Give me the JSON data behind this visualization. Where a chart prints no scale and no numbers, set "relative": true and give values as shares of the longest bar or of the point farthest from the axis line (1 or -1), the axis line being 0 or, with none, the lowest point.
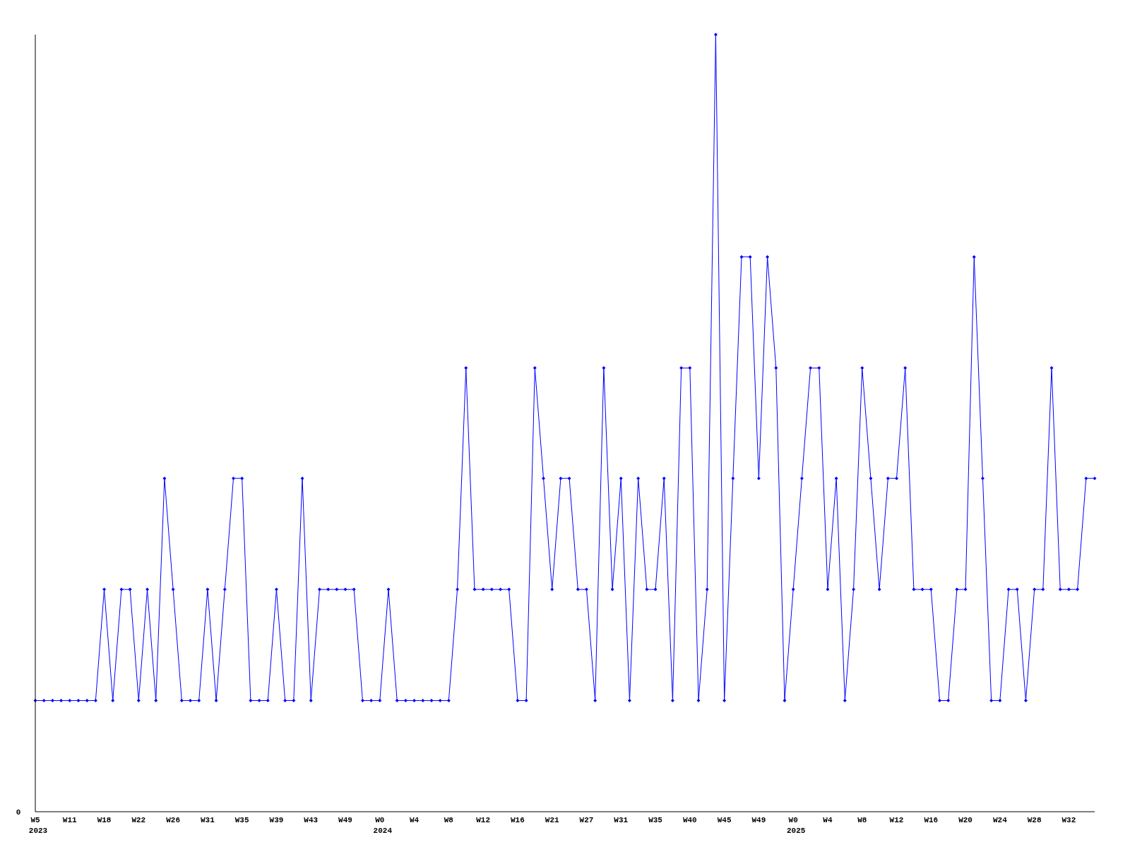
{
  "chart_data": {
    "type": "line",
    "relative": true,
    "marker": "diamond",
    "line_style": "solid",
    "annotations": [
      "0"
    ],
    "categories": [
      "W5\n2023",
      null,
      null,
      null,
      "W11",
      null,
      null,
      null,
      "W18",
      null,
      null,
      null,
      "W22",
      null,
      null,
      null,
      "W26",
      null,
      null,
      null,
      "W31",
      null,
      null,
      null,
      "W35",
      null,
      null,
      null,
      "W39",
      null,
      null,
      null,
      "W43",
      null,
      null,
      null,
      "W49",
      null,
      null,
      null,
      "W0\n2024",
      null,
      null,
      null,
      "W4",
      null,
      null,
      null,
      "W8",
      null,
      null,
      null,
      "W12",
      null,
      null,
      null,
      "W16",
      null,
      null,
      null,
      "W21",
      null,
      null,
      null,
      "W27",
      null,
      null,
      null,
      "W31",
      null,
      null,
      null,
      "W35",
      null,
      null,
      null,
      "W40",
      null,
      null,
      null,
      "W45",
      null,
      null,
      null,
      "W49",
      null,
      null,
      null,
      "W0\n2025",
      null,
      null,
      null,
      "W4",
      null,
      null,
      null,
      "W8",
      null,
      null,
      null,
      "W12",
      null,
      null,
      null,
      "W16",
      null,
      null,
      null,
      "W20",
      null,
      null,
      null,
      "W24",
      null,
      null,
      null,
      "W28",
      null,
      null,
      null,
      "W32",
      null,
      null,
      null
    ],
    "series": [
      {
        "color": "#0000ff",
        "values": [
          0.143,
          0.143,
          0.143,
          0.143,
          0.143,
          0.143,
          0.143,
          0.143,
          0.286,
          0.143,
          0.286,
          0.286,
          0.143,
          0.286,
          0.143,
          0.429,
          0.286,
          0.143,
          0.143,
          0.143,
          0.286,
          0.143,
          0.286,
          0.429,
          0.429,
          0.143,
          0.143,
          0.143,
          0.286,
          0.143,
          0.143,
          0.429,
          0.143,
          0.286,
          0.286,
          0.286,
          0.286,
          0.286,
          0.143,
          0.143,
          0.143,
          0.286,
          0.143,
          0.143,
          0.143,
          0.143,
          0.143,
          0.143,
          0.143,
          0.286,
          0.571,
          0.286,
          0.286,
          0.286,
          0.286,
          0.286,
          0.143,
          0.143,
          0.571,
          0.429,
          0.286,
          0.429,
          0.429,
          0.286,
          0.286,
          0.143,
          0.571,
          0.286,
          0.429,
          0.143,
          0.429,
          0.286,
          0.286,
          0.429,
          0.143,
          0.571,
          0.571,
          0.143,
          0.286,
          1,
          0.143,
          0.429,
          0.714,
          0.714,
          0.429,
          0.714,
          0.571,
          0.143,
          0.286,
          0.429,
          0.571,
          0.571,
          0.286,
          0.429,
          0.143,
          0.286,
          0.571,
          0.429,
          0.286,
          0.429,
          0.429,
          0.571,
          0.286,
          0.286,
          0.286,
          0.143,
          0.143,
          0.286,
          0.286,
          0.714,
          0.429,
          0.143,
          0.143,
          0.286,
          0.286,
          0.143,
          0.286,
          0.286,
          0.571,
          0.286,
          0.286,
          0.286,
          0.429,
          0.429
        ]
      }
    ]
  }
}
